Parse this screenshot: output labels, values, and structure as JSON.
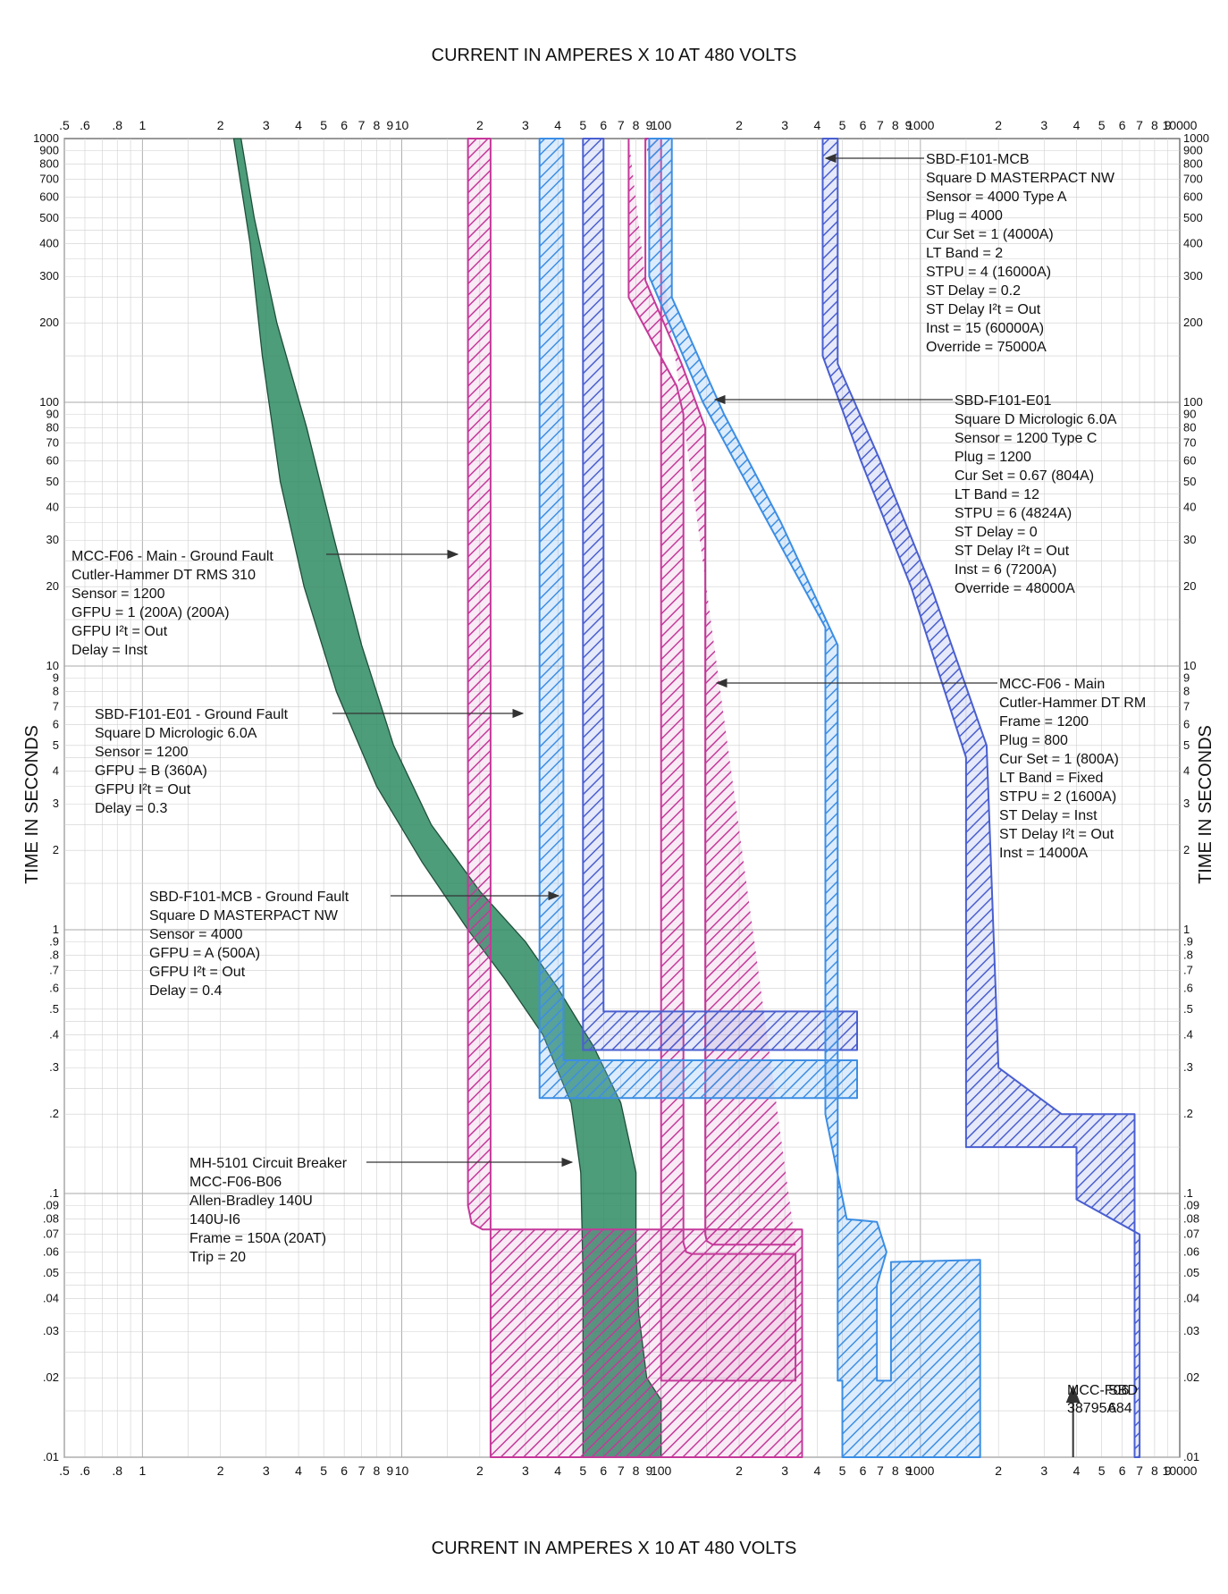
{
  "chart_data": {
    "type": "line",
    "title": "CURRENT IN AMPERES X 10 AT 480 VOLTS",
    "title_bottom": "CURRENT IN AMPERES X 10 AT 480 VOLTS",
    "xlabel": "CURRENT IN AMPERES X 10 AT 480 VOLTS",
    "ylabel": "TIME IN SECONDS",
    "xscale": "log",
    "yscale": "log",
    "xlim": [
      0.5,
      10000
    ],
    "ylim": [
      0.01,
      1000
    ],
    "grid": true,
    "x_tick_labels": [
      {
        "v": 0.5,
        "t": ".5"
      },
      {
        "v": 0.6,
        "t": ".6"
      },
      {
        "v": 0.8,
        "t": ".8"
      },
      {
        "v": 1,
        "t": "1"
      },
      {
        "v": 2,
        "t": "2"
      },
      {
        "v": 3,
        "t": "3"
      },
      {
        "v": 4,
        "t": "4"
      },
      {
        "v": 5,
        "t": "5"
      },
      {
        "v": 6,
        "t": "6"
      },
      {
        "v": 7,
        "t": "7"
      },
      {
        "v": 8,
        "t": "8"
      },
      {
        "v": 9,
        "t": "9"
      },
      {
        "v": 10,
        "t": "10"
      },
      {
        "v": 20,
        "t": "2"
      },
      {
        "v": 30,
        "t": "3"
      },
      {
        "v": 40,
        "t": "4"
      },
      {
        "v": 50,
        "t": "5"
      },
      {
        "v": 60,
        "t": "6"
      },
      {
        "v": 70,
        "t": "7"
      },
      {
        "v": 80,
        "t": "8"
      },
      {
        "v": 90,
        "t": "9"
      },
      {
        "v": 100,
        "t": "100"
      },
      {
        "v": 200,
        "t": "2"
      },
      {
        "v": 300,
        "t": "3"
      },
      {
        "v": 400,
        "t": "4"
      },
      {
        "v": 500,
        "t": "5"
      },
      {
        "v": 600,
        "t": "6"
      },
      {
        "v": 700,
        "t": "7"
      },
      {
        "v": 800,
        "t": "8"
      },
      {
        "v": 900,
        "t": "9"
      },
      {
        "v": 1000,
        "t": "1000"
      },
      {
        "v": 2000,
        "t": "2"
      },
      {
        "v": 3000,
        "t": "3"
      },
      {
        "v": 4000,
        "t": "4"
      },
      {
        "v": 5000,
        "t": "5"
      },
      {
        "v": 6000,
        "t": "6"
      },
      {
        "v": 7000,
        "t": "7"
      },
      {
        "v": 8000,
        "t": "8"
      },
      {
        "v": 9000,
        "t": "9"
      },
      {
        "v": 10000,
        "t": "10000"
      }
    ],
    "y_tick_labels": [
      {
        "v": 1000,
        "t": "1000"
      },
      {
        "v": 900,
        "t": "900"
      },
      {
        "v": 800,
        "t": "800"
      },
      {
        "v": 700,
        "t": "700"
      },
      {
        "v": 600,
        "t": "600"
      },
      {
        "v": 500,
        "t": "500"
      },
      {
        "v": 400,
        "t": "400"
      },
      {
        "v": 300,
        "t": "300"
      },
      {
        "v": 200,
        "t": "200"
      },
      {
        "v": 100,
        "t": "100"
      },
      {
        "v": 90,
        "t": "90"
      },
      {
        "v": 80,
        "t": "80"
      },
      {
        "v": 70,
        "t": "70"
      },
      {
        "v": 60,
        "t": "60"
      },
      {
        "v": 50,
        "t": "50"
      },
      {
        "v": 40,
        "t": "40"
      },
      {
        "v": 30,
        "t": "30"
      },
      {
        "v": 20,
        "t": "20"
      },
      {
        "v": 10,
        "t": "10"
      },
      {
        "v": 9,
        "t": "9"
      },
      {
        "v": 8,
        "t": "8"
      },
      {
        "v": 7,
        "t": "7"
      },
      {
        "v": 6,
        "t": "6"
      },
      {
        "v": 5,
        "t": "5"
      },
      {
        "v": 4,
        "t": "4"
      },
      {
        "v": 3,
        "t": "3"
      },
      {
        "v": 2,
        "t": "2"
      },
      {
        "v": 1,
        "t": "1"
      },
      {
        "v": 0.9,
        "t": ".9"
      },
      {
        "v": 0.8,
        "t": ".8"
      },
      {
        "v": 0.7,
        "t": ".7"
      },
      {
        "v": 0.6,
        "t": ".6"
      },
      {
        "v": 0.5,
        "t": ".5"
      },
      {
        "v": 0.4,
        "t": ".4"
      },
      {
        "v": 0.3,
        "t": ".3"
      },
      {
        "v": 0.2,
        "t": ".2"
      },
      {
        "v": 0.1,
        "t": ".1"
      },
      {
        "v": 0.09,
        "t": ".09"
      },
      {
        "v": 0.08,
        "t": ".08"
      },
      {
        "v": 0.07,
        "t": ".07"
      },
      {
        "v": 0.06,
        "t": ".06"
      },
      {
        "v": 0.05,
        "t": ".05"
      },
      {
        "v": 0.04,
        "t": ".04"
      },
      {
        "v": 0.03,
        "t": ".03"
      },
      {
        "v": 0.02,
        "t": ".02"
      },
      {
        "v": 0.01,
        "t": ".01"
      }
    ],
    "series": [
      {
        "name": "MH-5101 Circuit Breaker",
        "color": "#2e8b63",
        "style": "solid",
        "points": [
          [
            2.4,
            1000
          ],
          [
            2.7,
            500
          ],
          [
            3.3,
            200
          ],
          [
            4.3,
            80
          ],
          [
            5.5,
            30
          ],
          [
            7,
            12
          ],
          [
            9.3,
            5
          ],
          [
            13,
            2.5
          ],
          [
            20,
            1.4
          ],
          [
            30,
            0.9
          ],
          [
            40,
            0.6
          ],
          [
            55,
            0.36
          ],
          [
            70,
            0.22
          ],
          [
            80,
            0.12
          ],
          [
            80,
            0.06
          ],
          [
            82,
            0.035
          ],
          [
            88,
            0.02
          ],
          [
            100,
            0.0165
          ],
          [
            100,
            0.01
          ],
          [
            50,
            0.01
          ],
          [
            50,
            0.05
          ],
          [
            49,
            0.12
          ],
          [
            45,
            0.22
          ],
          [
            35,
            0.4
          ],
          [
            25,
            0.65
          ],
          [
            18,
            1
          ],
          [
            12,
            1.8
          ],
          [
            8,
            3.5
          ],
          [
            5.6,
            8
          ],
          [
            4.2,
            20
          ],
          [
            3.4,
            50
          ],
          [
            2.9,
            150
          ],
          [
            2.6,
            400
          ],
          [
            2.25,
            1000
          ]
        ]
      },
      {
        "name": "MCC-F06 - Main - Ground Fault",
        "color": "#c4399a",
        "style": "hatched",
        "points": [
          [
            18,
            1000
          ],
          [
            18,
            0.09
          ],
          [
            18.6,
            0.077
          ],
          [
            20.5,
            0.073
          ],
          [
            350,
            0.073
          ],
          [
            350,
            0.01
          ],
          [
            22,
            0.01
          ],
          [
            22,
            1000
          ]
        ]
      },
      {
        "name": "MCC-F06 - Main",
        "color": "#c4399a",
        "style": "hatched",
        "points": [
          [
            75,
            1000
          ],
          [
            75,
            250
          ],
          [
            115,
            115
          ],
          [
            122,
            90
          ],
          [
            122,
            0.065
          ],
          [
            125,
            0.06
          ],
          [
            131,
            0.059
          ],
          [
            330,
            0.059
          ],
          [
            330,
            0.0195
          ],
          [
            100,
            0.0195
          ],
          [
            100,
            1000
          ],
          [
            87,
            1000
          ],
          [
            87,
            290
          ],
          [
            120,
            140
          ],
          [
            148,
            80
          ],
          [
            148,
            0.07
          ],
          [
            150,
            0.066
          ],
          [
            158,
            0.064
          ],
          [
            330,
            0.064
          ]
        ]
      },
      {
        "name": "SBD-F101-E01 - Ground Fault",
        "color": "#3c8ee4",
        "style": "hatched",
        "points": [
          [
            34,
            1000
          ],
          [
            34,
            0.23
          ],
          [
            570,
            0.23
          ],
          [
            570,
            0.32
          ],
          [
            42,
            0.32
          ],
          [
            42,
            1000
          ]
        ]
      },
      {
        "name": "SBD-F101-MCB - Ground Fault",
        "color": "#4a5fd0",
        "style": "hatched",
        "points": [
          [
            50,
            1000
          ],
          [
            50,
            0.35
          ],
          [
            570,
            0.35
          ],
          [
            570,
            0.49
          ],
          [
            60,
            0.49
          ],
          [
            60,
            1000
          ]
        ]
      },
      {
        "name": "SBD-F101-E01",
        "color": "#3c8ee4",
        "style": "hatched",
        "points": [
          [
            90,
            1000
          ],
          [
            90,
            300
          ],
          [
            145,
            100
          ],
          [
            240,
            40
          ],
          [
            430,
            14
          ],
          [
            430,
            0.2
          ],
          [
            520,
            0.08
          ],
          [
            680,
            0.078
          ],
          [
            740,
            0.06
          ],
          [
            680,
            0.045
          ],
          [
            680,
            0.0195
          ],
          [
            770,
            0.0195
          ],
          [
            770,
            0.055
          ],
          [
            1700,
            0.056
          ],
          [
            1700,
            0.01
          ],
          [
            500,
            0.01
          ],
          [
            500,
            0.0195
          ],
          [
            480,
            0.0195
          ],
          [
            480,
            12
          ],
          [
            290,
            35
          ],
          [
            175,
            90
          ],
          [
            110,
            250
          ],
          [
            110,
            1000
          ]
        ]
      },
      {
        "name": "SBD-F101-MCB",
        "color": "#4a5fd0",
        "style": "hatched",
        "points": [
          [
            420,
            1000
          ],
          [
            420,
            150
          ],
          [
            590,
            60
          ],
          [
            920,
            20
          ],
          [
            1500,
            4.5
          ],
          [
            1500,
            0.15
          ],
          [
            4000,
            0.15
          ],
          [
            4000,
            0.095
          ],
          [
            7000,
            0.07
          ],
          [
            7000,
            0.01
          ],
          [
            6700,
            0.01
          ],
          [
            6700,
            0.2
          ],
          [
            3500,
            0.2
          ],
          [
            2000,
            0.3
          ],
          [
            1800,
            5
          ],
          [
            1100,
            20
          ],
          [
            700,
            60
          ],
          [
            480,
            140
          ],
          [
            480,
            1000
          ]
        ]
      },
      {
        "name": "Arc flash / fault current marker",
        "color": "#333333",
        "style": "arrow",
        "points": [
          [
            3879.5,
            0.01
          ],
          [
            3879.5,
            0.0185
          ]
        ]
      }
    ],
    "annotations": [
      {
        "id": "sbd-f101-mcb",
        "lines": [
          "SBD-F101-MCB",
          "Square D MASTERPACT NW",
          "Sensor = 4000 Type A",
          "Plug = 4000",
          "Cur Set = 1 (4000A)",
          "LT Band = 2",
          "STPU = 4 (16000A)",
          "ST Delay = 0.2",
          "ST Delay I²t = Out",
          "Inst = 15 (60000A)",
          "Override = 75000A"
        ]
      },
      {
        "id": "sbd-f101-e01",
        "lines": [
          "SBD-F101-E01",
          "Square D Micrologic 6.0A",
          "Sensor = 1200 Type C",
          "Plug = 1200",
          "Cur Set = 0.67 (804A)",
          "LT Band = 12",
          "STPU = 6 (4824A)",
          "ST Delay = 0",
          "ST Delay I²t = Out",
          "Inst = 6 (7200A)",
          "Override = 48000A"
        ]
      },
      {
        "id": "mcc-f06-main-gf",
        "lines": [
          "MCC-F06 - Main - Ground Fault",
          "Cutler-Hammer DT RMS 310",
          "Sensor = 1200",
          "GFPU = 1 (200A) (200A)",
          "GFPU I²t = Out",
          "Delay = Inst"
        ]
      },
      {
        "id": "sbd-f101-e01-gf",
        "lines": [
          "SBD-F101-E01 - Ground Fault",
          "Square D Micrologic 6.0A",
          "Sensor = 1200",
          "GFPU = B (360A)",
          "GFPU I²t = Out",
          "Delay = 0.3"
        ]
      },
      {
        "id": "mcc-f06-main",
        "lines": [
          "MCC-F06 - Main",
          "Cutler-Hammer DT RM",
          "Frame = 1200",
          "Plug = 800",
          "Cur Set = 1 (800A)",
          "LT Band = Fixed",
          "STPU = 2 (1600A)",
          "ST Delay = Inst",
          "ST Delay I²t = Out",
          "Inst = 14000A"
        ]
      },
      {
        "id": "sbd-f101-mcb-gf",
        "lines": [
          "SBD-F101-MCB - Ground Fault",
          "Square D MASTERPACT NW",
          "Sensor = 4000",
          "GFPU = A (500A)",
          "GFPU I²t = Out",
          "Delay = 0.4"
        ]
      },
      {
        "id": "mh-5101",
        "lines": [
          "MH-5101 Circuit Breaker",
          "MCC-F06-B06",
          "Allen-Bradley 140U",
          "140U-I6",
          "Frame = 150A (20AT)",
          "Trip = 20"
        ]
      },
      {
        "id": "fault-marker",
        "lines": [
          "MCC-F06",
          "38795A"
        ]
      },
      {
        "id": "fault-marker-2",
        "lines": [
          "SBD",
          "684"
        ]
      }
    ]
  }
}
